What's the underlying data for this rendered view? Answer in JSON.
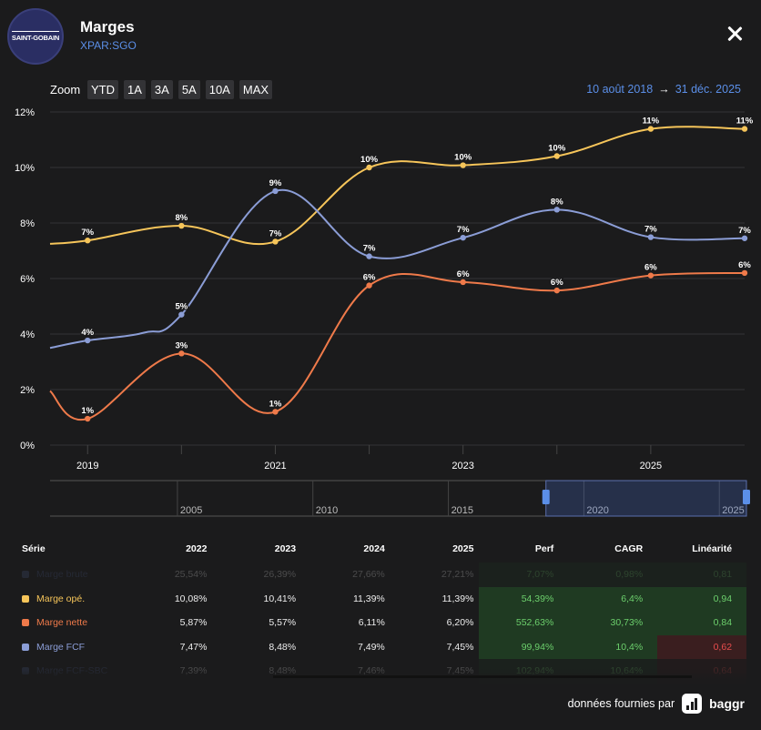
{
  "header": {
    "logo_text": "SAINT-GOBAIN",
    "title": "Marges",
    "ticker": "XPAR:SGO"
  },
  "zoom": {
    "label": "Zoom",
    "buttons": [
      "YTD",
      "1A",
      "3A",
      "5A",
      "10A",
      "MAX"
    ]
  },
  "range": {
    "start": "10 août 2018",
    "arrow": "→",
    "end": "31 déc. 2025"
  },
  "chart_data": {
    "type": "line",
    "x": [
      2018.6,
      2019,
      2020,
      2020.5,
      2021,
      2021.5,
      2022,
      2023,
      2024,
      2025,
      2026
    ],
    "ylim": [
      0,
      12
    ],
    "ytick_labels": [
      "0%",
      "2%",
      "4%",
      "6%",
      "8%",
      "10%",
      "12%"
    ],
    "xtick_labels": [
      "2019",
      "2021",
      "2023",
      "2025"
    ],
    "xticks": [
      2019,
      2021,
      2023,
      2025
    ],
    "grid": true,
    "series": [
      {
        "name": "Marge opé.",
        "color": "#f6c55a",
        "points": [
          [
            2018.6,
            7.25
          ],
          [
            2019,
            7.37
          ],
          [
            2020,
            7.9
          ],
          [
            2021,
            7.33
          ],
          [
            2022,
            10
          ],
          [
            2023,
            10.08
          ],
          [
            2024,
            10.41
          ],
          [
            2025,
            11.39
          ],
          [
            2026,
            11.39
          ]
        ],
        "labels": [
          [
            2019,
            "7%"
          ],
          [
            2020,
            "8%"
          ],
          [
            2021,
            "7%"
          ],
          [
            2022,
            "10%"
          ],
          [
            2023,
            "10%"
          ],
          [
            2024,
            "10%"
          ],
          [
            2025,
            "11%"
          ],
          [
            2026,
            "11%"
          ]
        ]
      },
      {
        "name": "Marge nette",
        "color": "#ef7a4a",
        "points": [
          [
            2018.6,
            1.95
          ],
          [
            2019,
            0.95
          ],
          [
            2020,
            3.3
          ],
          [
            2021,
            1.2
          ],
          [
            2022,
            5.75
          ],
          [
            2023,
            5.87
          ],
          [
            2024,
            5.57
          ],
          [
            2025,
            6.11
          ],
          [
            2026,
            6.2
          ]
        ],
        "labels": [
          [
            2019,
            "1%"
          ],
          [
            2020,
            "3%"
          ],
          [
            2021,
            "1%"
          ],
          [
            2022,
            "6%"
          ],
          [
            2023,
            "6%"
          ],
          [
            2024,
            "6%"
          ],
          [
            2025,
            "6%"
          ],
          [
            2026,
            "6%"
          ]
        ]
      },
      {
        "name": "Marge FCF",
        "color": "#8b9dd6",
        "points": [
          [
            2018.6,
            3.5
          ],
          [
            2019,
            3.77
          ],
          [
            2019.6,
            4.05
          ],
          [
            2020,
            4.7
          ],
          [
            2021,
            9.15
          ],
          [
            2022,
            6.8
          ],
          [
            2023,
            7.47
          ],
          [
            2024,
            8.48
          ],
          [
            2025,
            7.49
          ],
          [
            2026,
            7.45
          ]
        ],
        "labels": [
          [
            2019,
            "4%"
          ],
          [
            2020,
            "5%"
          ],
          [
            2021,
            "9%"
          ],
          [
            2022,
            "7%"
          ],
          [
            2023,
            "7%"
          ],
          [
            2024,
            "8%"
          ],
          [
            2025,
            "7%"
          ],
          [
            2026,
            "7%"
          ]
        ]
      }
    ],
    "navigator": {
      "labels": [
        "2005",
        "2010",
        "2015",
        "2020",
        "2025"
      ],
      "label_years": [
        2005,
        2010,
        2015,
        2020,
        2025
      ],
      "range_start": 2018.6,
      "range_end": 2026
    }
  },
  "table": {
    "headers": [
      "Série",
      "2022",
      "2023",
      "2024",
      "2025",
      "Perf",
      "CAGR",
      "Linéarité"
    ],
    "rows": [
      {
        "name": "Marge brute",
        "color": "#4a5a8a",
        "faded": true,
        "values": [
          "25,54%",
          "26,39%",
          "27,66%",
          "27,21%"
        ],
        "perf": "7,07%",
        "cagr": "0,98%",
        "lin": "0,81",
        "lin_status": "good"
      },
      {
        "name": "Marge opé.",
        "color": "#f6c55a",
        "faded": false,
        "values": [
          "10,08%",
          "10,41%",
          "11,39%",
          "11,39%"
        ],
        "perf": "54,39%",
        "cagr": "6,4%",
        "lin": "0,94",
        "lin_status": "good"
      },
      {
        "name": "Marge nette",
        "color": "#ef7a4a",
        "faded": false,
        "values": [
          "5,87%",
          "5,57%",
          "6,11%",
          "6,20%"
        ],
        "perf": "552,63%",
        "cagr": "30,73%",
        "lin": "0,84",
        "lin_status": "good"
      },
      {
        "name": "Marge FCF",
        "color": "#8b9dd6",
        "faded": false,
        "values": [
          "7,47%",
          "8,48%",
          "7,49%",
          "7,45%"
        ],
        "perf": "99,94%",
        "cagr": "10,4%",
        "lin": "0,62",
        "lin_status": "bad"
      },
      {
        "name": "Marge FCF-SBC",
        "color": "#4a5a8a",
        "faded": true,
        "values": [
          "7,39%",
          "8,48%",
          "7,46%",
          "7,45%"
        ],
        "perf": "102,94%",
        "cagr": "10,64%",
        "lin": "0,64",
        "lin_status": "bad"
      }
    ]
  },
  "footer": {
    "text": "données fournies par",
    "brand": "baggr"
  }
}
